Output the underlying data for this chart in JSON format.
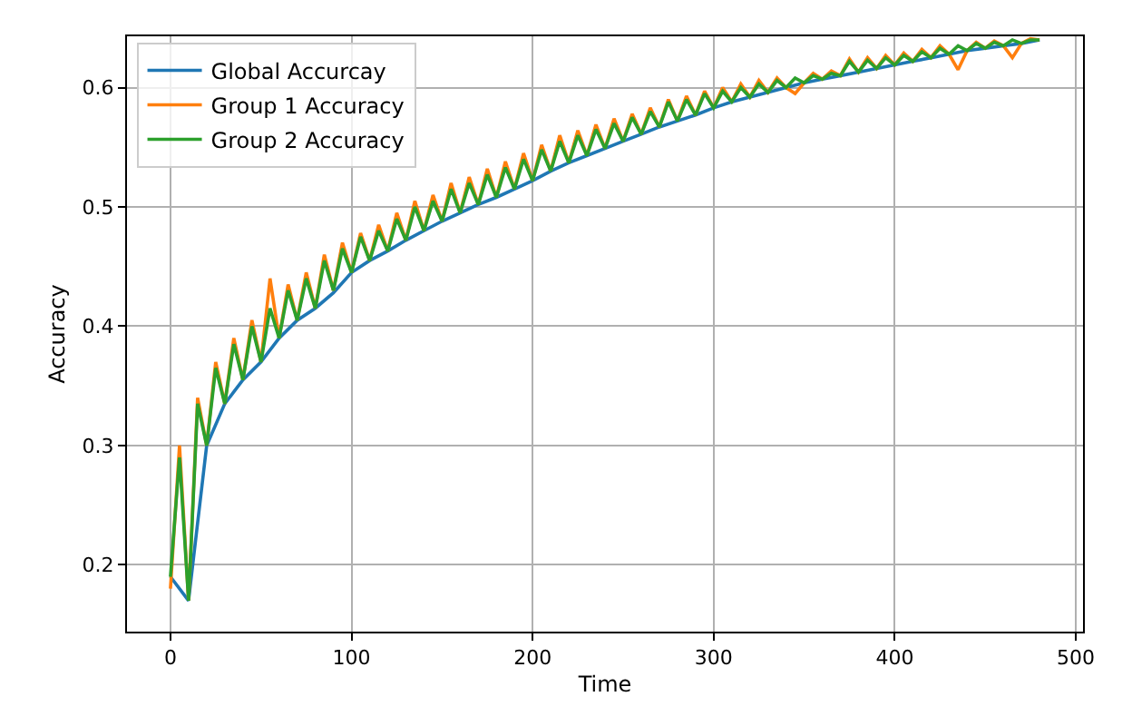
{
  "chart_data": {
    "type": "line",
    "xlabel": "Time",
    "ylabel": "Accuracy",
    "xlim": [
      -24,
      504
    ],
    "xticks": [
      0,
      100,
      200,
      300,
      400,
      500
    ],
    "ylim": [
      0.144,
      0.643
    ],
    "yticks": [
      0.2,
      0.3,
      0.4,
      0.5,
      0.6
    ],
    "grid": true,
    "legend": "top left",
    "line_style": "solid",
    "series": [
      {
        "name": "Global Accurcay",
        "color": "#1f77b4",
        "x": [
          0,
          10,
          20,
          30,
          40,
          50,
          60,
          70,
          80,
          90,
          100,
          110,
          120,
          130,
          140,
          150,
          160,
          170,
          180,
          190,
          200,
          210,
          220,
          230,
          240,
          250,
          260,
          270,
          280,
          290,
          300,
          310,
          320,
          330,
          340,
          350,
          360,
          370,
          380,
          390,
          400,
          410,
          420,
          430,
          440,
          450,
          460,
          470,
          480
        ],
        "values": [
          0.19,
          0.17,
          0.3,
          0.335,
          0.355,
          0.37,
          0.39,
          0.405,
          0.415,
          0.428,
          0.445,
          0.455,
          0.463,
          0.472,
          0.48,
          0.488,
          0.495,
          0.502,
          0.508,
          0.515,
          0.522,
          0.53,
          0.537,
          0.543,
          0.549,
          0.555,
          0.561,
          0.567,
          0.572,
          0.577,
          0.583,
          0.588,
          0.592,
          0.596,
          0.6,
          0.604,
          0.607,
          0.61,
          0.613,
          0.616,
          0.619,
          0.622,
          0.625,
          0.628,
          0.631,
          0.633,
          0.635,
          0.637,
          0.64
        ]
      },
      {
        "name": "Group 1 Accuracy",
        "color": "#ff7f0e",
        "x": [
          0,
          5,
          10,
          15,
          20,
          25,
          30,
          35,
          40,
          45,
          50,
          55,
          60,
          65,
          70,
          75,
          80,
          85,
          90,
          95,
          100,
          105,
          110,
          115,
          120,
          125,
          130,
          135,
          140,
          145,
          150,
          155,
          160,
          165,
          170,
          175,
          180,
          185,
          190,
          195,
          200,
          205,
          210,
          215,
          220,
          225,
          230,
          235,
          240,
          245,
          250,
          255,
          260,
          265,
          270,
          275,
          280,
          285,
          290,
          295,
          300,
          305,
          310,
          315,
          320,
          325,
          330,
          335,
          340,
          345,
          350,
          355,
          360,
          365,
          370,
          375,
          380,
          385,
          390,
          395,
          400,
          405,
          410,
          415,
          420,
          425,
          430,
          435,
          440,
          445,
          450,
          455,
          460,
          465,
          470,
          475,
          480
        ],
        "values": [
          0.18,
          0.3,
          0.17,
          0.34,
          0.3,
          0.37,
          0.335,
          0.39,
          0.355,
          0.405,
          0.37,
          0.44,
          0.39,
          0.435,
          0.405,
          0.445,
          0.415,
          0.46,
          0.43,
          0.47,
          0.445,
          0.478,
          0.455,
          0.485,
          0.463,
          0.495,
          0.472,
          0.505,
          0.48,
          0.51,
          0.488,
          0.52,
          0.495,
          0.525,
          0.502,
          0.532,
          0.508,
          0.538,
          0.515,
          0.545,
          0.522,
          0.552,
          0.53,
          0.56,
          0.537,
          0.564,
          0.543,
          0.569,
          0.549,
          0.574,
          0.555,
          0.578,
          0.561,
          0.583,
          0.567,
          0.59,
          0.572,
          0.593,
          0.577,
          0.597,
          0.583,
          0.6,
          0.588,
          0.603,
          0.592,
          0.606,
          0.596,
          0.608,
          0.6,
          0.595,
          0.604,
          0.612,
          0.607,
          0.614,
          0.61,
          0.624,
          0.613,
          0.625,
          0.616,
          0.627,
          0.619,
          0.629,
          0.622,
          0.632,
          0.625,
          0.635,
          0.628,
          0.615,
          0.631,
          0.638,
          0.633,
          0.639,
          0.635,
          0.625,
          0.637,
          0.641,
          0.64
        ]
      },
      {
        "name": "Group 2 Accuracy",
        "color": "#2ca02c",
        "x": [
          0,
          5,
          10,
          15,
          20,
          25,
          30,
          35,
          40,
          45,
          50,
          55,
          60,
          65,
          70,
          75,
          80,
          85,
          90,
          95,
          100,
          105,
          110,
          115,
          120,
          125,
          130,
          135,
          140,
          145,
          150,
          155,
          160,
          165,
          170,
          175,
          180,
          185,
          190,
          195,
          200,
          205,
          210,
          215,
          220,
          225,
          230,
          235,
          240,
          245,
          250,
          255,
          260,
          265,
          270,
          275,
          280,
          285,
          290,
          295,
          300,
          305,
          310,
          315,
          320,
          325,
          330,
          335,
          340,
          345,
          350,
          355,
          360,
          365,
          370,
          375,
          380,
          385,
          390,
          395,
          400,
          405,
          410,
          415,
          420,
          425,
          430,
          435,
          440,
          445,
          450,
          455,
          460,
          465,
          470,
          475,
          480
        ],
        "values": [
          0.19,
          0.29,
          0.17,
          0.335,
          0.3,
          0.365,
          0.335,
          0.385,
          0.355,
          0.4,
          0.37,
          0.415,
          0.39,
          0.43,
          0.405,
          0.44,
          0.415,
          0.455,
          0.43,
          0.465,
          0.445,
          0.475,
          0.455,
          0.48,
          0.463,
          0.49,
          0.472,
          0.5,
          0.48,
          0.505,
          0.488,
          0.515,
          0.495,
          0.52,
          0.502,
          0.527,
          0.508,
          0.533,
          0.515,
          0.54,
          0.522,
          0.548,
          0.53,
          0.555,
          0.537,
          0.56,
          0.543,
          0.565,
          0.549,
          0.57,
          0.555,
          0.575,
          0.561,
          0.58,
          0.567,
          0.588,
          0.572,
          0.59,
          0.577,
          0.595,
          0.583,
          0.597,
          0.588,
          0.6,
          0.592,
          0.603,
          0.596,
          0.606,
          0.6,
          0.608,
          0.604,
          0.61,
          0.607,
          0.612,
          0.61,
          0.622,
          0.613,
          0.623,
          0.616,
          0.625,
          0.619,
          0.627,
          0.622,
          0.63,
          0.625,
          0.633,
          0.628,
          0.635,
          0.631,
          0.637,
          0.633,
          0.638,
          0.635,
          0.64,
          0.637,
          0.64,
          0.64
        ]
      }
    ]
  }
}
